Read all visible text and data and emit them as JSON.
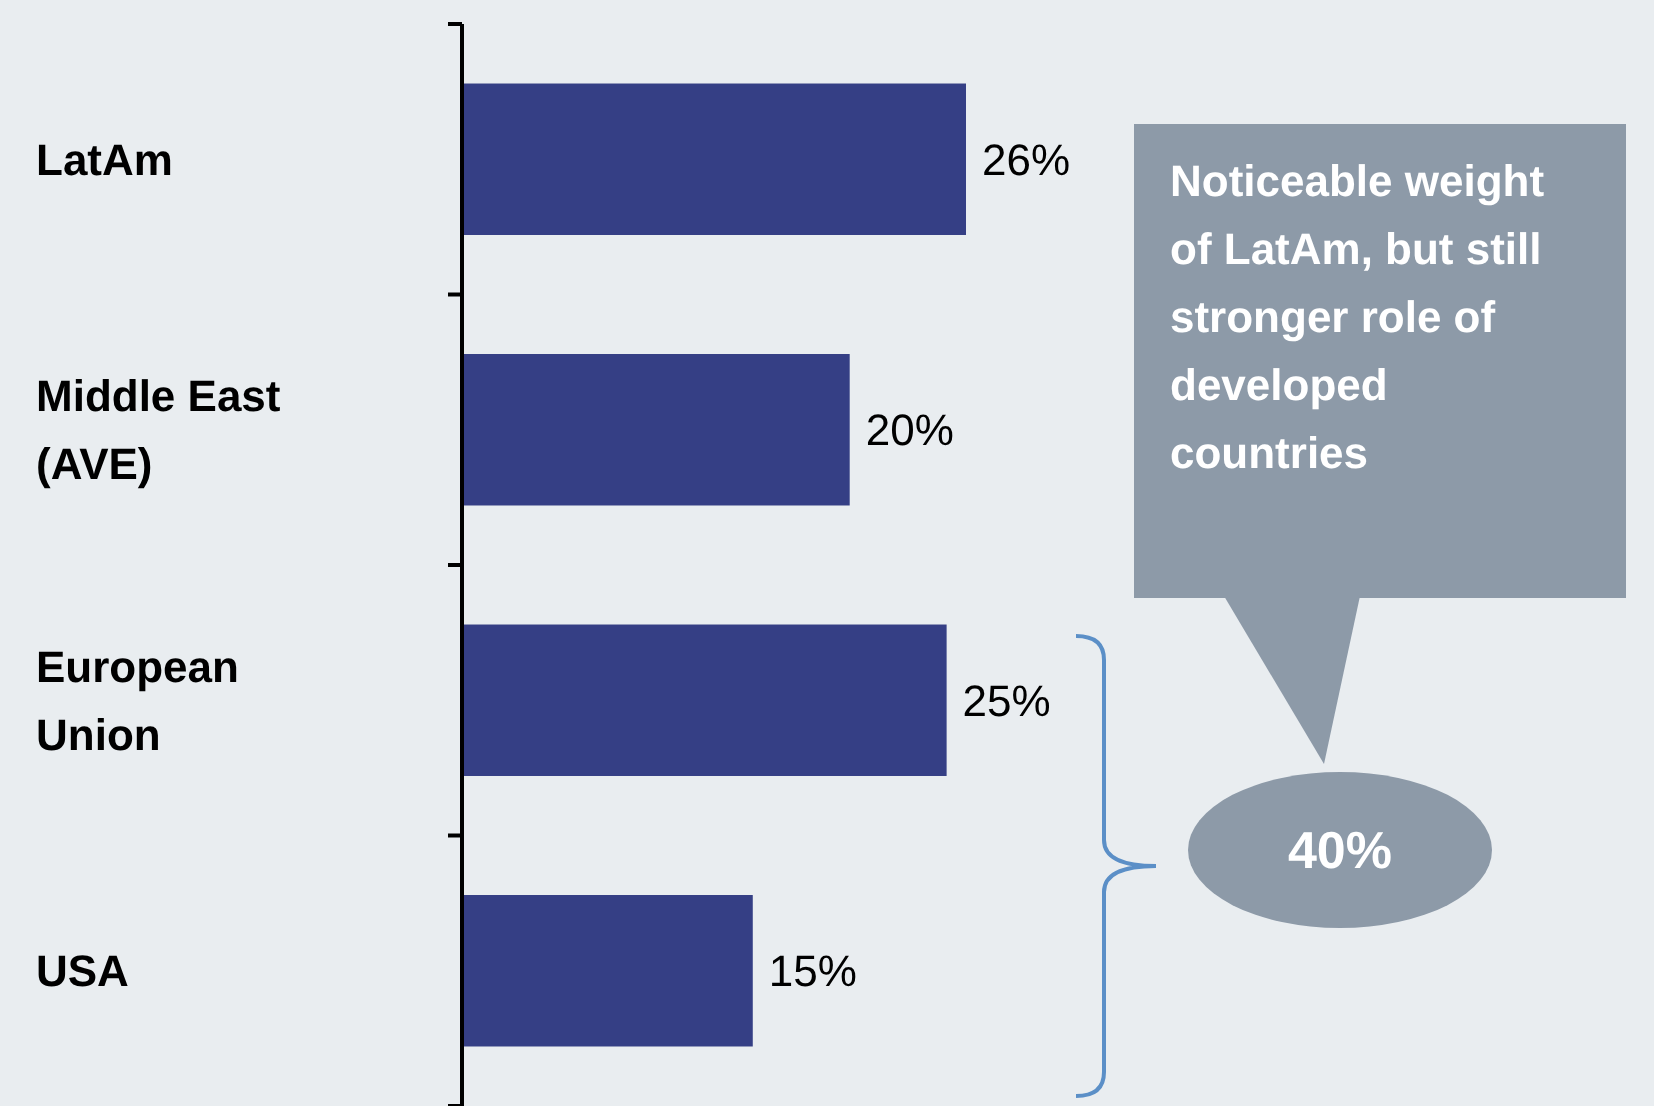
{
  "chart_data": {
    "type": "bar",
    "orientation": "horizontal",
    "categories": [
      "LatAm",
      "Middle East (AVE)",
      "European Union",
      "USA"
    ],
    "values": [
      26,
      20,
      25,
      15
    ],
    "color": "#353f85",
    "data_labels": true,
    "value_labels": [
      "26%",
      "20%",
      "25%",
      "15%"
    ],
    "annotations": [
      "Noticeable weight of LatAm, but still stronger role of developed countries",
      "40%"
    ]
  }
}
